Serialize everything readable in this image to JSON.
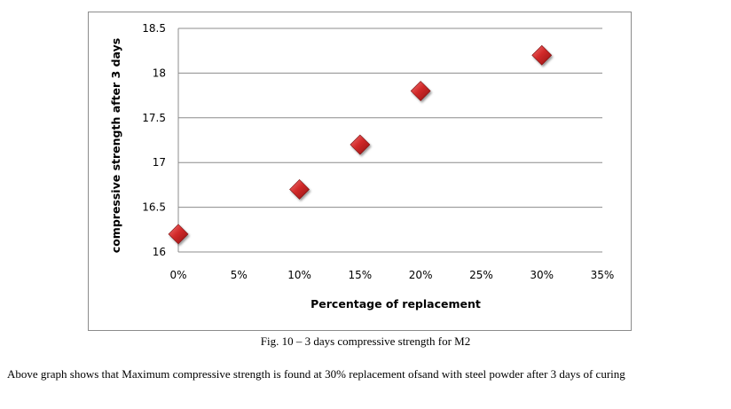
{
  "chart_data": {
    "type": "scatter",
    "title": "",
    "xlabel": "Percentage of replacement",
    "ylabel": "compressive strength after 3 days",
    "x": [
      0,
      10,
      15,
      20,
      30
    ],
    "y": [
      16.2,
      16.7,
      17.2,
      17.8,
      18.2
    ],
    "xlim": [
      0,
      35
    ],
    "ylim": [
      16,
      18.5
    ],
    "x_ticks": [
      0,
      5,
      10,
      15,
      20,
      25,
      30,
      35
    ],
    "x_tick_labels": [
      "0%",
      "5%",
      "10%",
      "15%",
      "20%",
      "25%",
      "30%",
      "35%"
    ],
    "y_ticks": [
      16,
      16.5,
      17,
      17.5,
      18,
      18.5
    ],
    "y_tick_labels": [
      "16",
      "16.5",
      "17",
      "17.5",
      "18",
      "18.5"
    ],
    "grid": true,
    "marker": "diamond",
    "marker_color": "#c0262b",
    "legend": "none"
  },
  "caption": "Fig. 10 – 3 days compressive strength for M2",
  "body_text": "Above graph shows that Maximum compressive strength is found at 30% replacement ofsand with steel powder after 3 days of curing"
}
